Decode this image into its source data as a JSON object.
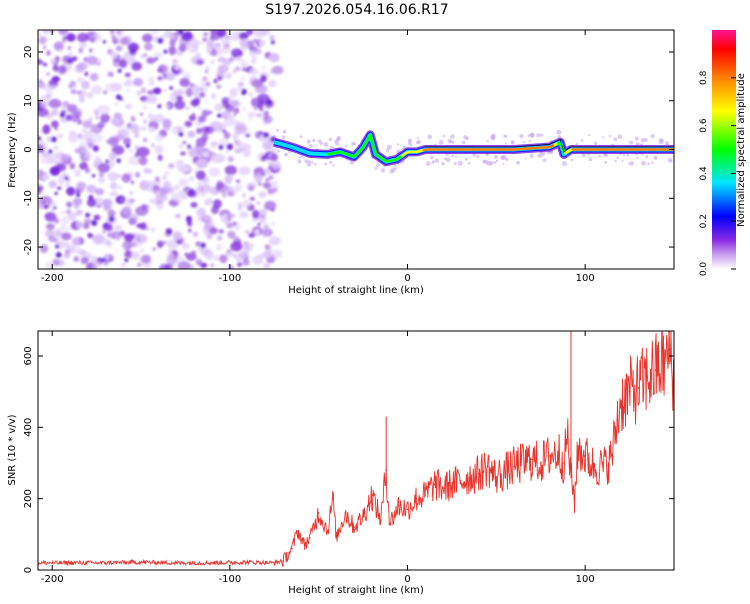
{
  "title": "S197.2026.054.16.06.R17",
  "chart_data": [
    {
      "type": "heatmap",
      "xlabel": "Height of straight line (km)",
      "ylabel": "Frequency (Hz)",
      "xlim": [
        -208,
        150
      ],
      "ylim": [
        -24.5,
        24.5
      ],
      "xticks": [
        -200,
        -100,
        0,
        100
      ],
      "yticks": [
        -20,
        -10,
        0,
        10,
        20
      ],
      "colorbar": {
        "label": "Normalized spectral amplitude",
        "range": [
          0,
          1
        ],
        "ticks": [
          0.0,
          0.2,
          0.4,
          0.6,
          0.8
        ],
        "tick_labels": [
          "0.0",
          "0.2",
          "0.4",
          "0.6",
          "0.8"
        ],
        "colors": [
          "#ffffff",
          "#c8a0f0",
          "#8a2be2",
          "#0000ff",
          "#00e5ff",
          "#00ff00",
          "#ffff00",
          "#ff8000",
          "#ff0000",
          "#ff1493"
        ]
      },
      "noise_region": {
        "x_range": [
          -208,
          -73
        ],
        "note": "scattered low-amplitude purple speckle across full frequency range"
      },
      "ridge": {
        "x": [
          -75,
          -65,
          -55,
          -45,
          -38,
          -30,
          -25,
          -21,
          -18,
          -12,
          -6,
          0,
          5,
          10,
          20,
          40,
          60,
          80,
          86,
          88,
          92,
          100,
          110,
          120,
          135,
          150
        ],
        "y": [
          1.5,
          0.5,
          -0.8,
          -1.0,
          -0.5,
          -1.5,
          0.5,
          3.0,
          -1.0,
          -2.5,
          -2.0,
          -0.5,
          -0.5,
          0.0,
          0.0,
          0.0,
          0.0,
          0.5,
          1.5,
          -1.0,
          0.0,
          0.0,
          0.0,
          0.0,
          0.0,
          0.0
        ],
        "amplitude": [
          0.35,
          0.4,
          0.45,
          0.5,
          0.55,
          0.5,
          0.6,
          0.5,
          0.55,
          0.6,
          0.65,
          0.7,
          0.75,
          0.85,
          0.85,
          0.9,
          0.9,
          0.85,
          0.6,
          0.6,
          0.85,
          0.85,
          0.9,
          0.85,
          0.85,
          0.85
        ]
      }
    },
    {
      "type": "line",
      "xlabel": "Height of straight line (km)",
      "ylabel": "SNR (10 * v/v)",
      "xlim": [
        -208,
        150
      ],
      "ylim": [
        0,
        670
      ],
      "xticks": [
        -200,
        -100,
        0,
        100
      ],
      "yticks": [
        0,
        200,
        400,
        600
      ],
      "series": [
        {
          "color": "#e8342c",
          "x": [
            -208,
            -190,
            -170,
            -150,
            -130,
            -110,
            -90,
            -75,
            -70,
            -65,
            -62,
            -58,
            -55,
            -50,
            -45,
            -42,
            -40,
            -35,
            -30,
            -25,
            -20,
            -15,
            -12,
            -10,
            -5,
            0,
            5,
            10,
            15,
            20,
            30,
            40,
            45,
            50,
            60,
            70,
            75,
            80,
            85,
            88,
            90,
            92,
            94,
            96,
            100,
            105,
            110,
            113,
            115,
            118,
            120,
            125,
            130,
            135,
            140,
            145,
            148,
            150
          ],
          "y": [
            20,
            20,
            20,
            22,
            20,
            20,
            22,
            20,
            25,
            60,
            110,
            70,
            90,
            160,
            110,
            200,
            90,
            160,
            120,
            150,
            210,
            140,
            280,
            130,
            180,
            170,
            200,
            210,
            240,
            230,
            250,
            270,
            290,
            260,
            290,
            310,
            300,
            320,
            330,
            300,
            380,
            260,
            200,
            340,
            320,
            290,
            290,
            300,
            320,
            420,
            470,
            500,
            510,
            540,
            560,
            580,
            620,
            520
          ]
        }
      ]
    }
  ]
}
